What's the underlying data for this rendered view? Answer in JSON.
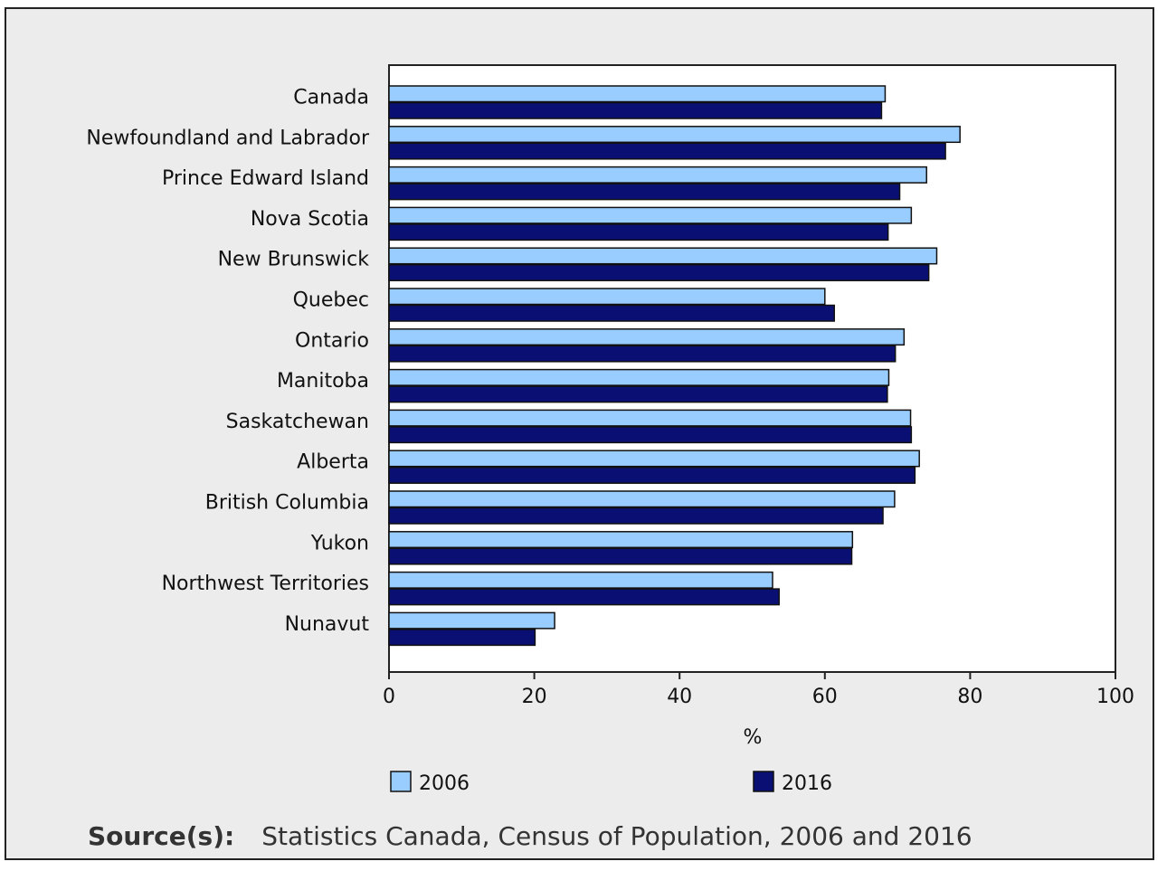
{
  "chart_data": {
    "type": "bar",
    "orientation": "horizontal",
    "categories": [
      "Canada",
      "Newfoundland and Labrador",
      "Prince Edward Island",
      "Nova Scotia",
      "New Brunswick",
      "Quebec",
      "Ontario",
      "Manitoba",
      "Saskatchewan",
      "Alberta",
      "British Columbia",
      "Yukon",
      "Northwest Territories",
      "Nunavut"
    ],
    "series": [
      {
        "name": "2006",
        "color": "#99ccff",
        "values": [
          68.3,
          78.6,
          74.0,
          71.9,
          75.4,
          60.0,
          70.9,
          68.8,
          71.8,
          73.0,
          69.6,
          63.8,
          52.8,
          22.8
        ]
      },
      {
        "name": "2016",
        "color": "#0a1073",
        "values": [
          67.8,
          76.6,
          70.3,
          68.7,
          74.3,
          61.3,
          69.7,
          68.6,
          71.9,
          72.4,
          68.0,
          63.7,
          53.7,
          20.1
        ]
      }
    ],
    "xlabel": "%",
    "xlim": [
      0,
      100
    ],
    "xticks": [
      0,
      20,
      40,
      60,
      80,
      100
    ],
    "grid": false,
    "legend_position": "bottom"
  },
  "source": {
    "label": "Source(s):",
    "text": "Statistics Canada, Census of Population, 2006 and 2016"
  }
}
